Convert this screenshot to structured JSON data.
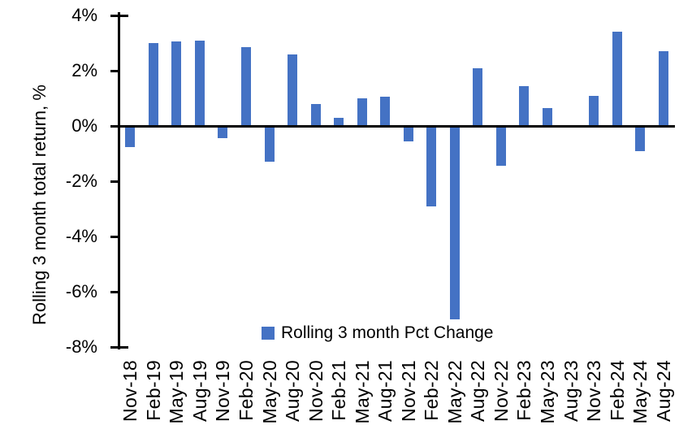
{
  "chart_data": {
    "type": "bar",
    "title": "",
    "ylabel": "Rolling 3 month total return, %",
    "xlabel": "",
    "legend": {
      "label": "Rolling 3 month Pct Change",
      "position": "bottom-center"
    },
    "categories": [
      "Nov-18",
      "Feb-19",
      "May-19",
      "Aug-19",
      "Nov-19",
      "Feb-20",
      "May-20",
      "Aug-20",
      "Nov-20",
      "Feb-21",
      "May-21",
      "Aug-21",
      "Nov-21",
      "Feb-22",
      "May-22",
      "Aug-22",
      "Nov-22",
      "Feb-23",
      "May-23",
      "Aug-23",
      "Nov-23",
      "Feb-24",
      "May-24",
      "Aug-24"
    ],
    "values": [
      -0.75,
      3.0,
      3.05,
      3.1,
      -0.45,
      2.85,
      -1.3,
      2.6,
      0.8,
      0.3,
      1.0,
      1.05,
      -0.55,
      -2.9,
      -7.0,
      2.1,
      -1.45,
      1.45,
      0.65,
      0.0,
      1.1,
      3.4,
      -0.9,
      2.7
    ],
    "ylim": [
      -8,
      4
    ],
    "yticks": [
      4,
      2,
      0,
      -2,
      -4,
      -6,
      -8
    ],
    "ytick_labels": [
      "4%",
      "2%",
      "0%",
      "-2%",
      "-4%",
      "-6%",
      "-8%"
    ],
    "grid": false,
    "bar_color": "#4472C4",
    "axis_color": "#000000"
  }
}
